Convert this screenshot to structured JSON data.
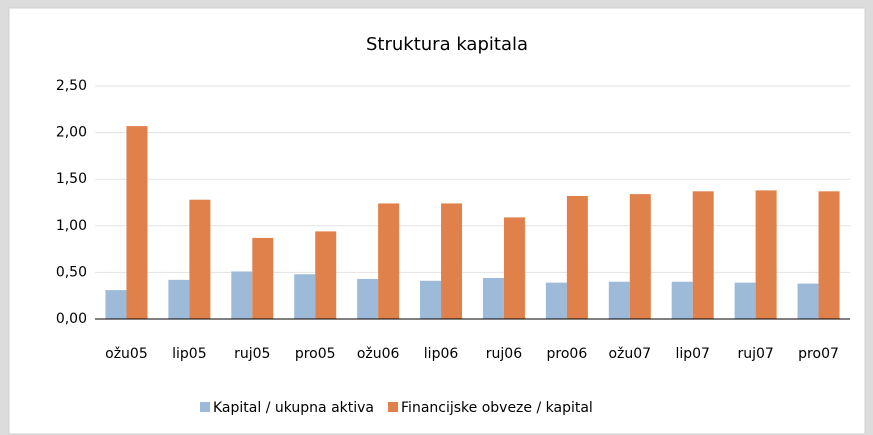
{
  "chart_data": {
    "type": "bar",
    "title": "Struktura kapitala",
    "categories": [
      "ožu05",
      "lip05",
      "ruj05",
      "pro05",
      "ožu06",
      "lip06",
      "ruj06",
      "pro06",
      "ožu07",
      "lip07",
      "ruj07",
      "pro07"
    ],
    "series": [
      {
        "name": "Kapital / ukupna aktiva",
        "color": "#9dbbd8",
        "values": [
          0.31,
          0.42,
          0.51,
          0.48,
          0.43,
          0.41,
          0.44,
          0.39,
          0.4,
          0.4,
          0.39,
          0.38
        ]
      },
      {
        "name": "Financijske obveze / kapital",
        "color": "#e0804a",
        "values": [
          2.07,
          1.28,
          0.87,
          0.94,
          1.24,
          1.24,
          1.09,
          1.32,
          1.34,
          1.37,
          1.38,
          1.37
        ]
      }
    ],
    "ylim": [
      0,
      2.5
    ],
    "yticks": [
      {
        "value": 0,
        "label": "0,00"
      },
      {
        "value": 0.5,
        "label": "0,50"
      },
      {
        "value": 1,
        "label": "1,00"
      },
      {
        "value": 1.5,
        "label": "1,50"
      },
      {
        "value": 2,
        "label": "2,00"
      },
      {
        "value": 2.5,
        "label": "2,50"
      }
    ],
    "grid": true,
    "legend": "bottom"
  }
}
